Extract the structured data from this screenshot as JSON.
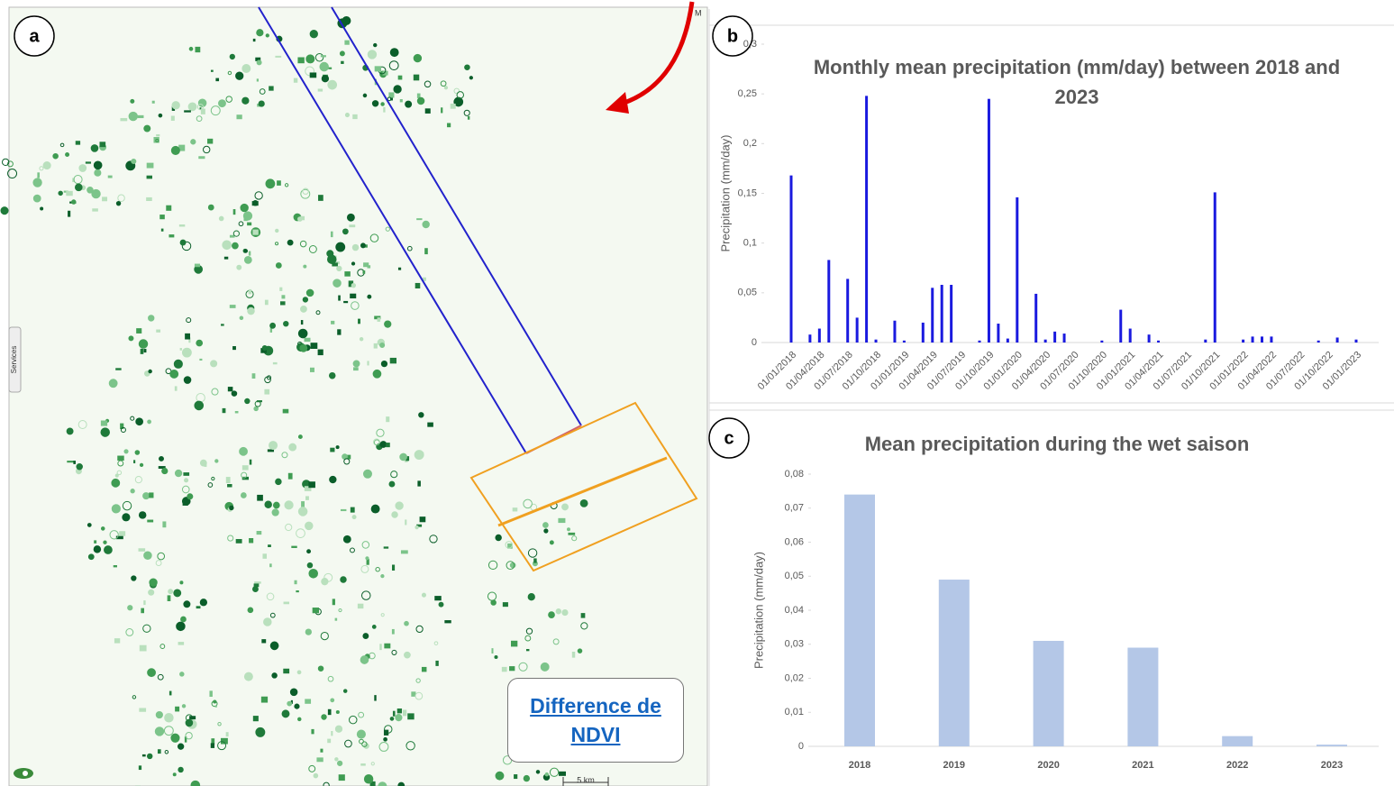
{
  "map": {
    "panel_label": "a",
    "legend_link": "Difference de NDVI",
    "side_tab": "Services",
    "scale": "5 km",
    "corner_label": "M"
  },
  "chart_data": [
    {
      "type": "bar",
      "panel_label": "b",
      "title": "Monthly mean precipitation (mm/day) between 2018 and 2023",
      "y_label": "Precipitation (mm/day)",
      "color": "#1a1adf",
      "categories": [
        "01/01/2018",
        null,
        null,
        "01/04/2018",
        null,
        null,
        "01/07/2018",
        null,
        null,
        "01/10/2018",
        null,
        null,
        "01/01/2019",
        null,
        null,
        "01/04/2019",
        null,
        null,
        "01/07/2019",
        null,
        null,
        "01/10/2019",
        null,
        null,
        "01/01/2020",
        null,
        null,
        "01/04/2020",
        null,
        null,
        "01/07/2020",
        null,
        null,
        "01/10/2020",
        null,
        null,
        "01/01/2021",
        null,
        null,
        "01/04/2021",
        null,
        null,
        "01/07/2021",
        null,
        null,
        "01/10/2021",
        null,
        null,
        "01/01/2022",
        null,
        null,
        "01/04/2022",
        null,
        null,
        "01/07/2022",
        null,
        null,
        "01/10/2022",
        null,
        null,
        "01/01/2023"
      ],
      "values": [
        0.168,
        0,
        0.008,
        0.014,
        0.083,
        0,
        0.064,
        0.025,
        0.248,
        0.003,
        0,
        0.022,
        0.002,
        0,
        0.02,
        0.055,
        0.058,
        0.058,
        0,
        0,
        0.002,
        0.245,
        0.019,
        0.004,
        0.146,
        0,
        0.049,
        0.003,
        0.011,
        0.009,
        0,
        0,
        0,
        0.002,
        0,
        0.033,
        0.014,
        0,
        0.008,
        0.002,
        0,
        0,
        0,
        0,
        0.003,
        0.151,
        0,
        0,
        0.003,
        0.006,
        0.006,
        0.006,
        0,
        0,
        0,
        0,
        0.002,
        0,
        0.005,
        0,
        0.003
      ],
      "ylim": [
        0,
        0.3
      ],
      "yticks": [
        0,
        {
          "value": 0.05,
          "label": "0,05"
        },
        {
          "value": 0.1,
          "label": "0,1"
        },
        {
          "value": 0.15,
          "label": "0,15"
        },
        {
          "value": 0.2,
          "label": "0,2"
        },
        {
          "value": 0.25,
          "label": "0,25"
        },
        {
          "value": 0.3,
          "label": "0,3"
        }
      ],
      "grid": false
    },
    {
      "type": "bar",
      "panel_label": "c",
      "title": "Mean precipitation during the wet saison",
      "y_label": "Precipitation (mm/day)",
      "color": "#b4c7e7",
      "categories": [
        "2018",
        "2019",
        "2020",
        "2021",
        "2022",
        "2023"
      ],
      "values": [
        0.074,
        0.049,
        0.031,
        0.029,
        0.003,
        0.0005
      ],
      "ylim": [
        0,
        0.08
      ],
      "yticks": [
        0,
        {
          "value": 0.01,
          "label": "0,01"
        },
        {
          "value": 0.02,
          "label": "0,02"
        },
        {
          "value": 0.03,
          "label": "0,03"
        },
        {
          "value": 0.04,
          "label": "0,04"
        },
        {
          "value": 0.05,
          "label": "0,05"
        },
        {
          "value": 0.06,
          "label": "0,06"
        },
        {
          "value": 0.07,
          "label": "0,07"
        },
        {
          "value": 0.08,
          "label": "0,08"
        }
      ],
      "grid": false
    }
  ]
}
